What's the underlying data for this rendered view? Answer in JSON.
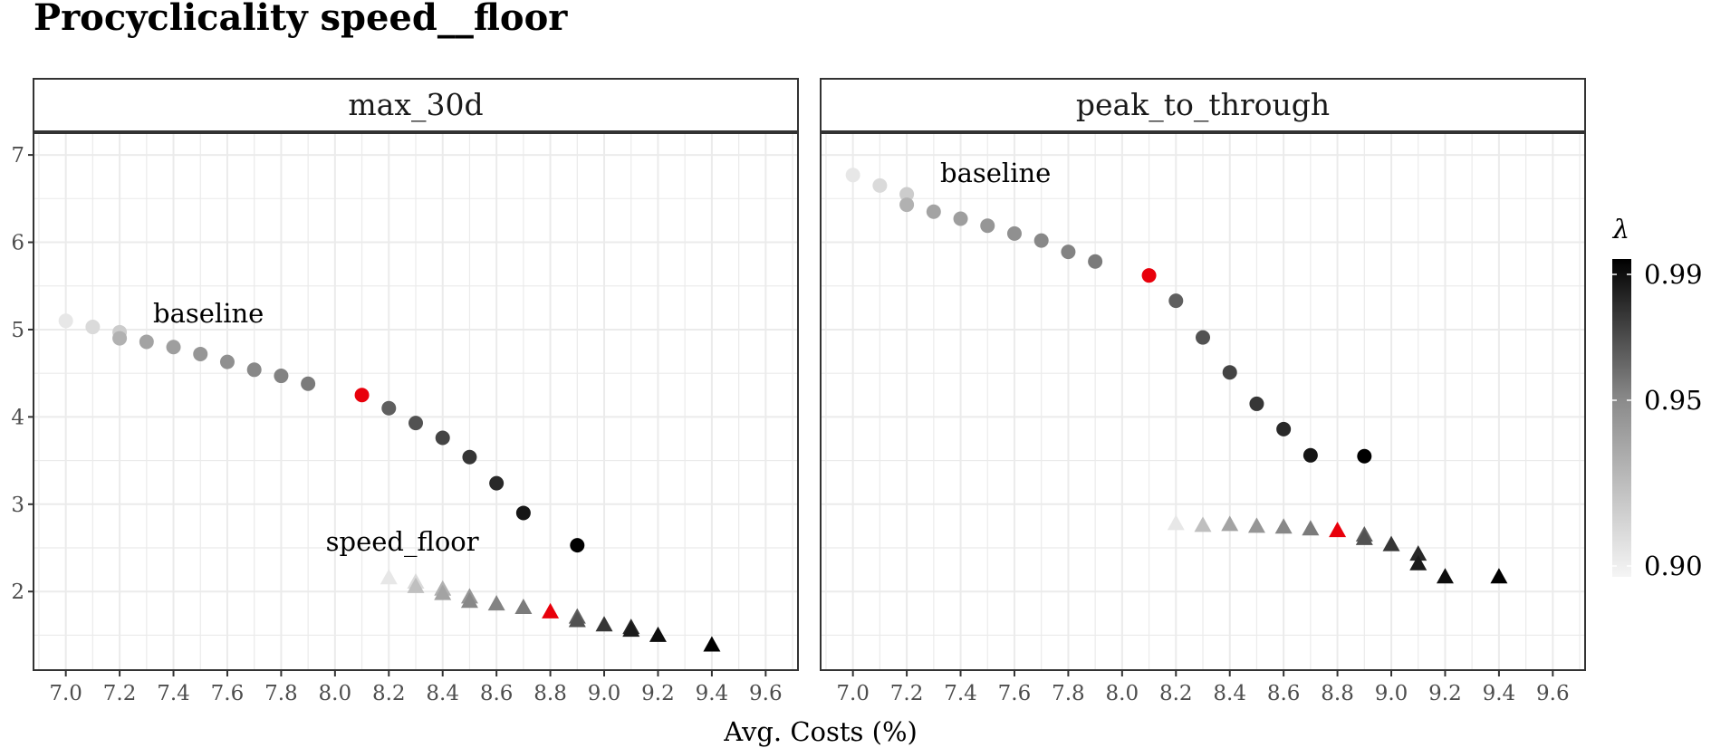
{
  "chart_data": {
    "type": "scatter",
    "title": "Procyclicality speed__floor",
    "xlabel": "Avg. Costs (%)",
    "ylabel": "",
    "xlim": [
      6.88,
      9.72
    ],
    "ylim": [
      1.1,
      7.25
    ],
    "x_ticks": [
      "7.0",
      "7.2",
      "7.4",
      "7.6",
      "7.8",
      "8.0",
      "8.2",
      "8.4",
      "8.6",
      "8.8",
      "9.0",
      "9.2",
      "9.4",
      "9.6"
    ],
    "y_ticks": [
      "2",
      "3",
      "4",
      "5",
      "6",
      "7"
    ],
    "grid": true,
    "legend": {
      "title": "λ",
      "position": "right",
      "labels": [
        "0.99",
        "0.95",
        "0.90"
      ],
      "range": [
        0.9,
        0.99
      ]
    },
    "panels": [
      {
        "strip": "max_30d",
        "annotations": [
          {
            "text": "baseline",
            "x": 7.53,
            "y": 5.08
          },
          {
            "text": "speed_floor",
            "x": 8.25,
            "y": 2.47
          }
        ],
        "series": [
          {
            "shape": "circle",
            "points": [
              {
                "x": 7.0,
                "y": 5.1,
                "lambda": 0.905
              },
              {
                "x": 7.1,
                "y": 5.03,
                "lambda": 0.91
              },
              {
                "x": 7.2,
                "y": 4.97,
                "lambda": 0.915
              },
              {
                "x": 7.2,
                "y": 4.9,
                "lambda": 0.925
              },
              {
                "x": 7.3,
                "y": 4.86,
                "lambda": 0.93
              },
              {
                "x": 7.4,
                "y": 4.8,
                "lambda": 0.932
              },
              {
                "x": 7.5,
                "y": 4.72,
                "lambda": 0.935
              },
              {
                "x": 7.6,
                "y": 4.63,
                "lambda": 0.937
              },
              {
                "x": 7.7,
                "y": 4.54,
                "lambda": 0.94
              },
              {
                "x": 7.8,
                "y": 4.47,
                "lambda": 0.942
              },
              {
                "x": 7.9,
                "y": 4.38,
                "lambda": 0.945
              },
              {
                "x": 8.1,
                "y": 4.25,
                "lambda": 0.95,
                "highlight": true
              },
              {
                "x": 8.2,
                "y": 4.1,
                "lambda": 0.955
              },
              {
                "x": 8.3,
                "y": 3.93,
                "lambda": 0.96
              },
              {
                "x": 8.4,
                "y": 3.76,
                "lambda": 0.965
              },
              {
                "x": 8.5,
                "y": 3.54,
                "lambda": 0.97
              },
              {
                "x": 8.6,
                "y": 3.24,
                "lambda": 0.975
              },
              {
                "x": 8.7,
                "y": 2.9,
                "lambda": 0.982
              },
              {
                "x": 8.9,
                "y": 2.53,
                "lambda": 0.99
              }
            ]
          },
          {
            "shape": "triangle",
            "points": [
              {
                "x": 8.2,
                "y": 2.15,
                "lambda": 0.905
              },
              {
                "x": 8.3,
                "y": 2.1,
                "lambda": 0.91
              },
              {
                "x": 8.3,
                "y": 2.05,
                "lambda": 0.92
              },
              {
                "x": 8.4,
                "y": 2.02,
                "lambda": 0.925
              },
              {
                "x": 8.4,
                "y": 1.97,
                "lambda": 0.93
              },
              {
                "x": 8.5,
                "y": 1.93,
                "lambda": 0.935
              },
              {
                "x": 8.5,
                "y": 1.88,
                "lambda": 0.94
              },
              {
                "x": 8.6,
                "y": 1.85,
                "lambda": 0.942
              },
              {
                "x": 8.7,
                "y": 1.81,
                "lambda": 0.945
              },
              {
                "x": 8.8,
                "y": 1.76,
                "lambda": 0.95,
                "highlight": true
              },
              {
                "x": 8.9,
                "y": 1.7,
                "lambda": 0.955
              },
              {
                "x": 8.9,
                "y": 1.66,
                "lambda": 0.96
              },
              {
                "x": 9.0,
                "y": 1.61,
                "lambda": 0.97
              },
              {
                "x": 9.1,
                "y": 1.58,
                "lambda": 0.975
              },
              {
                "x": 9.1,
                "y": 1.55,
                "lambda": 0.98
              },
              {
                "x": 9.2,
                "y": 1.49,
                "lambda": 0.985
              },
              {
                "x": 9.4,
                "y": 1.38,
                "lambda": 0.99
              }
            ]
          }
        ]
      },
      {
        "strip": "peak_to_through",
        "annotations": [
          {
            "text": "baseline",
            "x": 7.53,
            "y": 6.69
          }
        ],
        "series": [
          {
            "shape": "circle",
            "points": [
              {
                "x": 7.0,
                "y": 6.77,
                "lambda": 0.905
              },
              {
                "x": 7.1,
                "y": 6.65,
                "lambda": 0.91
              },
              {
                "x": 7.2,
                "y": 6.55,
                "lambda": 0.915
              },
              {
                "x": 7.2,
                "y": 6.43,
                "lambda": 0.925
              },
              {
                "x": 7.3,
                "y": 6.35,
                "lambda": 0.93
              },
              {
                "x": 7.4,
                "y": 6.27,
                "lambda": 0.932
              },
              {
                "x": 7.5,
                "y": 6.19,
                "lambda": 0.935
              },
              {
                "x": 7.6,
                "y": 6.1,
                "lambda": 0.937
              },
              {
                "x": 7.7,
                "y": 6.02,
                "lambda": 0.94
              },
              {
                "x": 7.8,
                "y": 5.89,
                "lambda": 0.942
              },
              {
                "x": 7.9,
                "y": 5.78,
                "lambda": 0.945
              },
              {
                "x": 8.1,
                "y": 5.62,
                "lambda": 0.95,
                "highlight": true
              },
              {
                "x": 8.2,
                "y": 5.33,
                "lambda": 0.955
              },
              {
                "x": 8.3,
                "y": 4.91,
                "lambda": 0.96
              },
              {
                "x": 8.4,
                "y": 4.51,
                "lambda": 0.965
              },
              {
                "x": 8.5,
                "y": 4.15,
                "lambda": 0.97
              },
              {
                "x": 8.6,
                "y": 3.86,
                "lambda": 0.975
              },
              {
                "x": 8.7,
                "y": 3.56,
                "lambda": 0.982
              },
              {
                "x": 8.9,
                "y": 3.55,
                "lambda": 0.99
              }
            ]
          },
          {
            "shape": "triangle",
            "points": [
              {
                "x": 8.2,
                "y": 2.77,
                "lambda": 0.905
              },
              {
                "x": 8.3,
                "y": 2.75,
                "lambda": 0.92
              },
              {
                "x": 8.4,
                "y": 2.76,
                "lambda": 0.93
              },
              {
                "x": 8.5,
                "y": 2.74,
                "lambda": 0.935
              },
              {
                "x": 8.6,
                "y": 2.73,
                "lambda": 0.94
              },
              {
                "x": 8.7,
                "y": 2.71,
                "lambda": 0.945
              },
              {
                "x": 8.8,
                "y": 2.69,
                "lambda": 0.95,
                "highlight": true
              },
              {
                "x": 8.9,
                "y": 2.64,
                "lambda": 0.955
              },
              {
                "x": 8.9,
                "y": 2.6,
                "lambda": 0.96
              },
              {
                "x": 9.0,
                "y": 2.53,
                "lambda": 0.97
              },
              {
                "x": 9.1,
                "y": 2.42,
                "lambda": 0.975
              },
              {
                "x": 9.1,
                "y": 2.31,
                "lambda": 0.98
              },
              {
                "x": 9.2,
                "y": 2.16,
                "lambda": 0.985
              },
              {
                "x": 9.4,
                "y": 2.16,
                "lambda": 0.99
              }
            ]
          }
        ]
      }
    ],
    "colors": {
      "highlight": "#e8000b",
      "gradient_low": "#f5f5f5",
      "gradient_high": "#000000",
      "grid": "#ebebeb",
      "strip_fill": "#ffffff",
      "panel_border": "#333333"
    }
  }
}
